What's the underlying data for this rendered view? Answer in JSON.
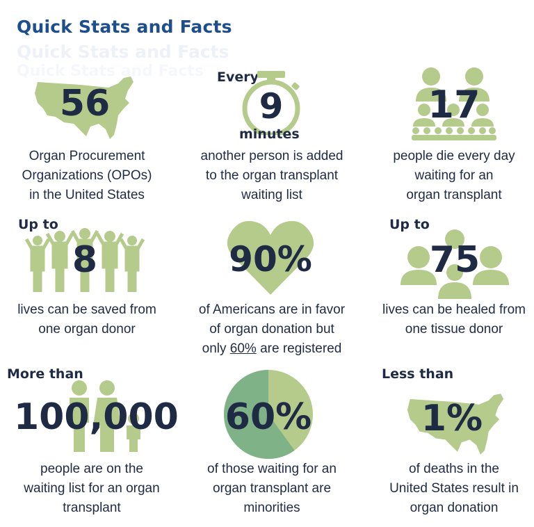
{
  "title": "Quick Stats and Facts",
  "colors": {
    "green": "#b5cb8b",
    "dark_green": "#7fb287",
    "navy": "#1f2a44",
    "title_blue": "#1f4e8c"
  },
  "stats": [
    {
      "prefix": "",
      "value": "56",
      "suffix": "",
      "icon": "us-map-icon",
      "caption": [
        "Organ Procurement",
        "Organizations (OPOs)",
        "in the United States"
      ]
    },
    {
      "prefix": "Every",
      "value": "9",
      "suffix": "minutes",
      "icon": "stopwatch-icon",
      "caption": [
        "another person is added",
        "to the organ transplant",
        "waiting list"
      ]
    },
    {
      "prefix": "",
      "value": "17",
      "suffix": "",
      "icon": "people-group-icon",
      "caption": [
        "people die every day",
        "waiting for an",
        "organ transplant"
      ]
    },
    {
      "prefix": "Up to",
      "value": "8",
      "suffix": "",
      "icon": "raised-arms-people-icon",
      "caption": [
        "lives can be saved from",
        "one organ donor"
      ]
    },
    {
      "prefix": "",
      "value": "90%",
      "suffix": "",
      "icon": "heart-icon",
      "caption": [
        "of Americans are in favor",
        "of organ donation but",
        "only",
        "60%",
        "are registered"
      ]
    },
    {
      "prefix": "Up to",
      "value": "75",
      "suffix": "",
      "icon": "users-icon",
      "caption": [
        "lives can be healed from",
        "one tissue donor"
      ]
    },
    {
      "prefix": "More than",
      "value": "100,000",
      "suffix": "",
      "icon": "family-icon",
      "caption": [
        "people are on the",
        "waiting list for an organ",
        "transplant"
      ]
    },
    {
      "prefix": "",
      "value": "60%",
      "suffix": "",
      "icon": "pie-chart-icon",
      "pie_fraction": 0.6,
      "caption": [
        "of those waiting for an",
        "organ transplant are",
        "minorities"
      ]
    },
    {
      "prefix": "Less than",
      "value": "1%",
      "suffix": "",
      "icon": "us-map-icon",
      "caption": [
        "of deaths in the",
        "United States result in",
        "organ donation"
      ]
    }
  ]
}
